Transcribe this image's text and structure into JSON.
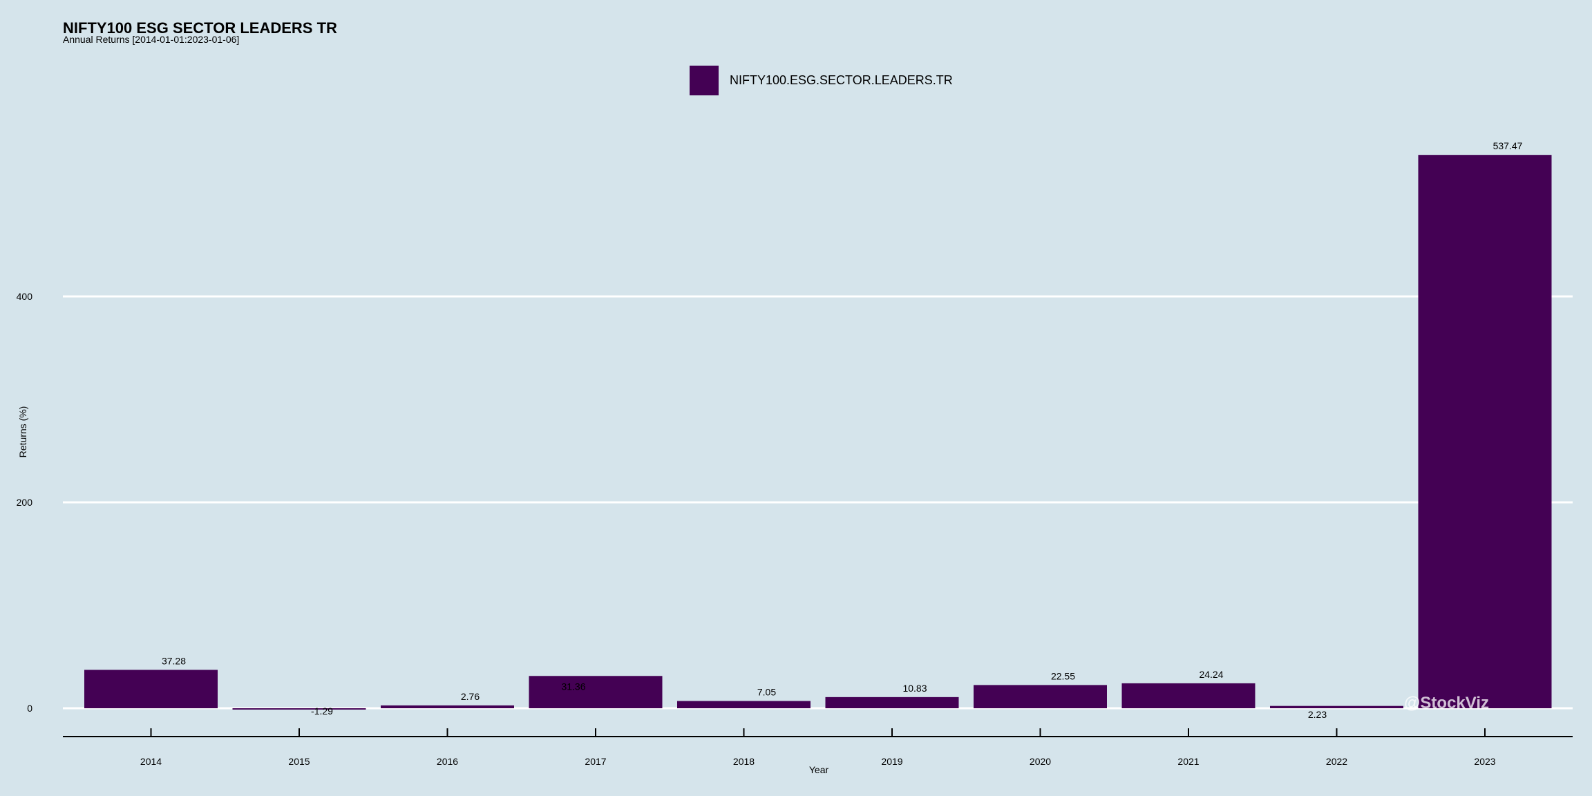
{
  "chart_data": {
    "type": "bar",
    "title": "NIFTY100 ESG SECTOR LEADERS TR",
    "subtitle": "Annual Returns [2014-01-01:2023-01-06]",
    "xlabel": "Year",
    "ylabel": "Returns (%)",
    "ylim": [
      0,
      560
    ],
    "yticks": [
      0,
      200,
      400
    ],
    "grid": true,
    "legend_position": "top",
    "categories": [
      "2014",
      "2015",
      "2016",
      "2017",
      "2018",
      "2019",
      "2020",
      "2021",
      "2022",
      "2023"
    ],
    "series": [
      {
        "name": "NIFTY100.ESG.SECTOR.LEADERS.TR",
        "color": "#440154",
        "values": [
          37.28,
          -1.29,
          2.76,
          31.36,
          7.05,
          10.83,
          22.55,
          24.24,
          2.23,
          537.47
        ],
        "labels": [
          "37.28",
          "-1.29",
          "2.76",
          "31.36",
          "7.05",
          "10.83",
          "22.55",
          "24.24",
          "2.23",
          "537.47"
        ]
      }
    ],
    "background_color": "#d5e4eb",
    "grid_color": "#ffffff"
  },
  "watermark": "@StockViz"
}
